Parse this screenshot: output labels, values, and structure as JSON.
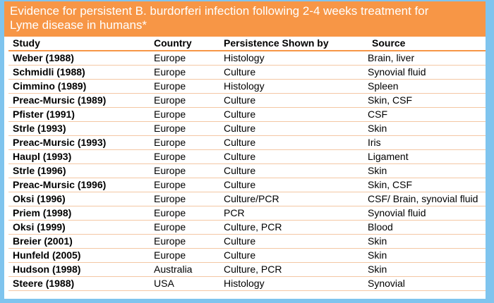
{
  "header": {
    "title": "Evidence for persistent B. burdorferi infection following 2-4 weeks treatment for Lyme disease in humans*"
  },
  "table": {
    "columns": [
      "Study",
      "Country",
      "Persistence Shown by",
      "Source"
    ],
    "rows": [
      [
        "Weber (1988)",
        "Europe",
        "Histology",
        "Brain, liver"
      ],
      [
        "Schmidli (1988)",
        "Europe",
        "Culture",
        "Synovial fluid"
      ],
      [
        "Cimmino (1989)",
        "Europe",
        "Histology",
        "Spleen"
      ],
      [
        "Preac-Mursic (1989)",
        "Europe",
        "Culture",
        "Skin, CSF"
      ],
      [
        "Pfister (1991)",
        "Europe",
        "Culture",
        "CSF"
      ],
      [
        "Strle (1993)",
        "Europe",
        "Culture",
        "Skin"
      ],
      [
        "Preac-Mursic (1993)",
        "Europe",
        "Culture",
        "Iris"
      ],
      [
        "Haupl (1993)",
        "Europe",
        "Culture",
        "Ligament"
      ],
      [
        "Strle (1996)",
        "Europe",
        "Culture",
        "Skin"
      ],
      [
        "Preac-Mursic (1996)",
        "Europe",
        "Culture",
        "Skin, CSF"
      ],
      [
        "Oksi (1996)",
        "Europe",
        "Culture/PCR",
        "CSF/ Brain, synovial fluid"
      ],
      [
        "Priem (1998)",
        "Europe",
        "PCR",
        "Synovial fluid"
      ],
      [
        "Oksi (1999)",
        "Europe",
        "Culture, PCR",
        "Blood"
      ],
      [
        "Breier (2001)",
        "Europe",
        "Culture",
        "Skin"
      ],
      [
        "Hunfeld (2005)",
        "Europe",
        "Culture",
        "Skin"
      ],
      [
        "Hudson (1998)",
        "Australia",
        "Culture, PCR",
        "Skin"
      ],
      [
        "Steere (1988)",
        "USA",
        "Histology",
        "Synovial"
      ]
    ]
  }
}
